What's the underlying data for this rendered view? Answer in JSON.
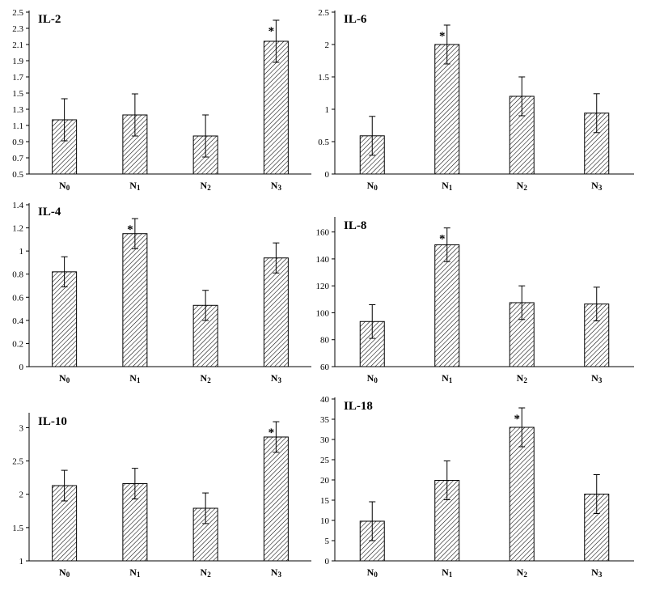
{
  "chart_data": [
    {
      "type": "bar",
      "title": "IL-2",
      "categories": [
        "N0",
        "N1",
        "N2",
        "N3"
      ],
      "values": [
        1.17,
        1.23,
        0.97,
        2.14
      ],
      "errors": [
        0.26,
        0.26,
        0.26,
        0.26
      ],
      "significant": [
        false,
        false,
        false,
        true
      ],
      "yticks": [
        "0.5",
        "0.7",
        "0.9",
        "1.1",
        "1.3",
        "1.5",
        "1.7",
        "1.9",
        "2.1",
        "2.3",
        "2.5"
      ],
      "ylim": [
        0.5,
        2.5
      ],
      "grid": false,
      "hatch": "diagonal"
    },
    {
      "type": "bar",
      "title": "IL-6",
      "categories": [
        "N0",
        "N1",
        "N2",
        "N3"
      ],
      "values": [
        0.59,
        2.0,
        1.2,
        0.94
      ],
      "errors": [
        0.3,
        0.3,
        0.3,
        0.3
      ],
      "significant": [
        false,
        true,
        false,
        false
      ],
      "yticks": [
        "0",
        "0.5",
        "1",
        "1.5",
        "2",
        "2.5"
      ],
      "ylim": [
        0,
        2.5
      ],
      "grid": false,
      "hatch": "diagonal"
    },
    {
      "type": "bar",
      "title": "IL-4",
      "categories": [
        "N0",
        "N1",
        "N2",
        "N3"
      ],
      "values": [
        0.82,
        1.15,
        0.53,
        0.94
      ],
      "errors": [
        0.13,
        0.13,
        0.13,
        0.13
      ],
      "significant": [
        false,
        true,
        false,
        false
      ],
      "yticks": [
        "0",
        "0.2",
        "0.4",
        "0.6",
        "0.8",
        "1",
        "1.2",
        "1.4"
      ],
      "ylim": [
        0,
        1.4
      ],
      "grid": false,
      "hatch": "diagonal"
    },
    {
      "type": "bar",
      "title": "IL-8",
      "categories": [
        "N0",
        "N1",
        "N2",
        "N3"
      ],
      "values": [
        93.5,
        150.5,
        107.5,
        106.5
      ],
      "errors": [
        12.5,
        12.5,
        12.5,
        12.5
      ],
      "significant": [
        false,
        true,
        false,
        false
      ],
      "yticks": [
        "60",
        "80",
        "100",
        "120",
        "140",
        "160"
      ],
      "ylim": [
        60,
        170
      ],
      "grid": false,
      "hatch": "diagonal"
    },
    {
      "type": "bar",
      "title": "IL-10",
      "categories": [
        "N0",
        "N1",
        "N2",
        "N3"
      ],
      "values": [
        2.13,
        2.16,
        1.79,
        2.86
      ],
      "errors": [
        0.23,
        0.23,
        0.23,
        0.23
      ],
      "significant": [
        false,
        false,
        false,
        true
      ],
      "yticks": [
        "1",
        "1.5",
        "2",
        "2.5",
        "3"
      ],
      "ylim": [
        1,
        3.2
      ],
      "grid": false,
      "hatch": "diagonal"
    },
    {
      "type": "bar",
      "title": "IL-18",
      "categories": [
        "N0",
        "N1",
        "N2",
        "N3"
      ],
      "values": [
        9.8,
        19.9,
        33.0,
        16.5
      ],
      "errors": [
        4.8,
        4.8,
        4.8,
        4.8
      ],
      "significant": [
        false,
        false,
        true,
        false
      ],
      "yticks": [
        "0",
        "5",
        "10",
        "15",
        "20",
        "25",
        "30",
        "35",
        "40"
      ],
      "ylim": [
        0,
        40
      ],
      "grid": false,
      "hatch": "diagonal"
    }
  ],
  "significance_marker": "*",
  "colors": {
    "bar_fill": "#ffffff",
    "hatch": "#000000",
    "axis": "#000000"
  }
}
